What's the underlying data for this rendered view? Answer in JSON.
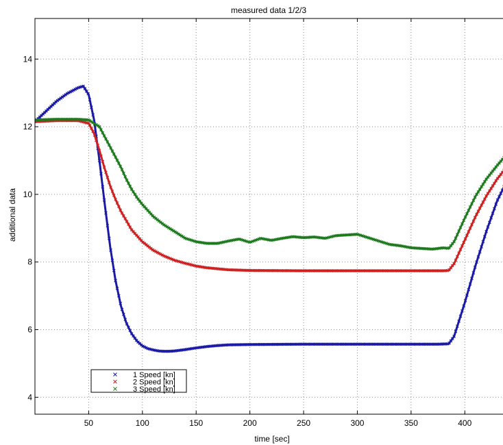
{
  "chart_data": {
    "type": "scatter",
    "title": "measured data 1/2/3",
    "xlabel": "time [sec]",
    "ylabel": "additional data",
    "xlim": [
      0,
      440
    ],
    "ylim": [
      3.5,
      15.2
    ],
    "xticks": [
      50,
      100,
      150,
      200,
      250,
      300,
      350,
      400
    ],
    "yticks": [
      4,
      6,
      8,
      10,
      12,
      14
    ],
    "grid": true,
    "legend_position": "bottom-left",
    "marker": "x",
    "series": [
      {
        "name": "1 Speed [kn]",
        "color": "#1a1aa6",
        "points": [
          [
            0,
            12.15
          ],
          [
            10,
            12.45
          ],
          [
            20,
            12.75
          ],
          [
            30,
            12.98
          ],
          [
            40,
            13.15
          ],
          [
            45,
            13.2
          ],
          [
            50,
            12.95
          ],
          [
            55,
            12.2
          ],
          [
            60,
            11.0
          ],
          [
            65,
            9.7
          ],
          [
            70,
            8.45
          ],
          [
            75,
            7.45
          ],
          [
            80,
            6.7
          ],
          [
            85,
            6.2
          ],
          [
            90,
            5.88
          ],
          [
            95,
            5.66
          ],
          [
            100,
            5.52
          ],
          [
            105,
            5.44
          ],
          [
            110,
            5.4
          ],
          [
            115,
            5.37
          ],
          [
            120,
            5.36
          ],
          [
            125,
            5.36
          ],
          [
            130,
            5.37
          ],
          [
            140,
            5.41
          ],
          [
            150,
            5.46
          ],
          [
            160,
            5.5
          ],
          [
            170,
            5.53
          ],
          [
            180,
            5.55
          ],
          [
            200,
            5.56
          ],
          [
            250,
            5.57
          ],
          [
            300,
            5.57
          ],
          [
            350,
            5.57
          ],
          [
            375,
            5.57
          ],
          [
            385,
            5.58
          ],
          [
            390,
            5.8
          ],
          [
            400,
            6.8
          ],
          [
            410,
            7.9
          ],
          [
            420,
            8.9
          ],
          [
            430,
            9.8
          ],
          [
            440,
            10.45
          ]
        ]
      },
      {
        "name": "2 Speed [kn]",
        "color": "#cc2222",
        "points": [
          [
            0,
            12.15
          ],
          [
            20,
            12.18
          ],
          [
            40,
            12.18
          ],
          [
            50,
            12.1
          ],
          [
            55,
            11.8
          ],
          [
            60,
            11.3
          ],
          [
            65,
            10.75
          ],
          [
            70,
            10.25
          ],
          [
            75,
            9.85
          ],
          [
            80,
            9.5
          ],
          [
            90,
            8.95
          ],
          [
            100,
            8.6
          ],
          [
            110,
            8.35
          ],
          [
            120,
            8.18
          ],
          [
            130,
            8.05
          ],
          [
            140,
            7.96
          ],
          [
            150,
            7.88
          ],
          [
            160,
            7.83
          ],
          [
            170,
            7.8
          ],
          [
            180,
            7.77
          ],
          [
            190,
            7.76
          ],
          [
            200,
            7.75
          ],
          [
            250,
            7.74
          ],
          [
            300,
            7.74
          ],
          [
            350,
            7.74
          ],
          [
            380,
            7.74
          ],
          [
            385,
            7.75
          ],
          [
            390,
            7.95
          ],
          [
            400,
            8.65
          ],
          [
            410,
            9.35
          ],
          [
            420,
            9.95
          ],
          [
            430,
            10.45
          ],
          [
            440,
            10.85
          ]
        ]
      },
      {
        "name": "3 Speed [kn]",
        "color": "#1f7a1f",
        "points": [
          [
            0,
            12.2
          ],
          [
            20,
            12.22
          ],
          [
            40,
            12.22
          ],
          [
            50,
            12.2
          ],
          [
            60,
            12.0
          ],
          [
            65,
            11.7
          ],
          [
            70,
            11.4
          ],
          [
            75,
            11.1
          ],
          [
            80,
            10.8
          ],
          [
            85,
            10.45
          ],
          [
            90,
            10.15
          ],
          [
            95,
            9.9
          ],
          [
            100,
            9.7
          ],
          [
            110,
            9.35
          ],
          [
            120,
            9.1
          ],
          [
            130,
            8.9
          ],
          [
            140,
            8.7
          ],
          [
            150,
            8.6
          ],
          [
            160,
            8.55
          ],
          [
            170,
            8.55
          ],
          [
            180,
            8.62
          ],
          [
            190,
            8.68
          ],
          [
            200,
            8.58
          ],
          [
            210,
            8.7
          ],
          [
            220,
            8.64
          ],
          [
            230,
            8.7
          ],
          [
            240,
            8.75
          ],
          [
            250,
            8.72
          ],
          [
            260,
            8.74
          ],
          [
            270,
            8.7
          ],
          [
            280,
            8.78
          ],
          [
            290,
            8.8
          ],
          [
            300,
            8.82
          ],
          [
            310,
            8.72
          ],
          [
            320,
            8.62
          ],
          [
            330,
            8.52
          ],
          [
            340,
            8.48
          ],
          [
            350,
            8.42
          ],
          [
            360,
            8.4
          ],
          [
            370,
            8.38
          ],
          [
            380,
            8.42
          ],
          [
            385,
            8.4
          ],
          [
            390,
            8.6
          ],
          [
            400,
            9.3
          ],
          [
            410,
            9.95
          ],
          [
            420,
            10.45
          ],
          [
            430,
            10.85
          ],
          [
            440,
            11.22
          ]
        ]
      }
    ]
  }
}
